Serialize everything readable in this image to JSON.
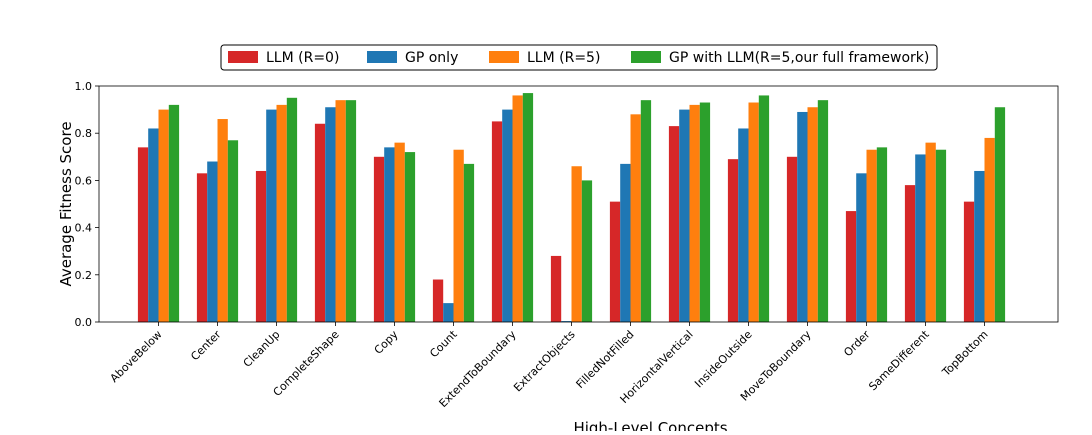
{
  "chart_data": {
    "type": "bar",
    "title": "",
    "xlabel": "High-Level Concepts",
    "ylabel": "Average Fitness Score",
    "ylim": [
      0,
      1.0
    ],
    "yticks": [
      0.0,
      0.2,
      0.4,
      0.6,
      0.8,
      1.0
    ],
    "ytick_labels": [
      "0.0",
      "0.2",
      "0.4",
      "0.6",
      "0.8",
      "1.0"
    ],
    "grid": false,
    "legend_position": "top-center",
    "categories": [
      "AboveBelow",
      "Center",
      "CleanUp",
      "CompleteShape",
      "Copy",
      "Count",
      "ExtendToBoundary",
      "ExtractObjects",
      "FilledNotFilled",
      "HorizontalVertical",
      "InsideOutside",
      "MoveToBoundary",
      "Order",
      "SameDifferent",
      "TopBottom"
    ],
    "series": [
      {
        "name": "LLM (R=0)",
        "color": "#d62728",
        "values": [
          0.74,
          0.63,
          0.64,
          0.84,
          0.7,
          0.18,
          0.85,
          0.28,
          0.51,
          0.83,
          0.69,
          0.7,
          0.47,
          0.58,
          0.51
        ]
      },
      {
        "name": "GP only",
        "color": "#1f77b4",
        "values": [
          0.82,
          0.68,
          0.9,
          0.91,
          0.74,
          0.08,
          0.9,
          0.004,
          0.67,
          0.9,
          0.82,
          0.89,
          0.63,
          0.71,
          0.64
        ]
      },
      {
        "name": "LLM (R=5)",
        "color": "#ff7f0e",
        "values": [
          0.9,
          0.86,
          0.92,
          0.94,
          0.76,
          0.73,
          0.96,
          0.66,
          0.88,
          0.92,
          0.93,
          0.91,
          0.73,
          0.76,
          0.78
        ]
      },
      {
        "name": "GP with LLM(R=5,our full framework)",
        "color": "#2ca02c",
        "values": [
          0.92,
          0.77,
          0.95,
          0.94,
          0.72,
          0.67,
          0.97,
          0.6,
          0.94,
          0.93,
          0.96,
          0.94,
          0.74,
          0.73,
          0.91
        ]
      }
    ]
  }
}
